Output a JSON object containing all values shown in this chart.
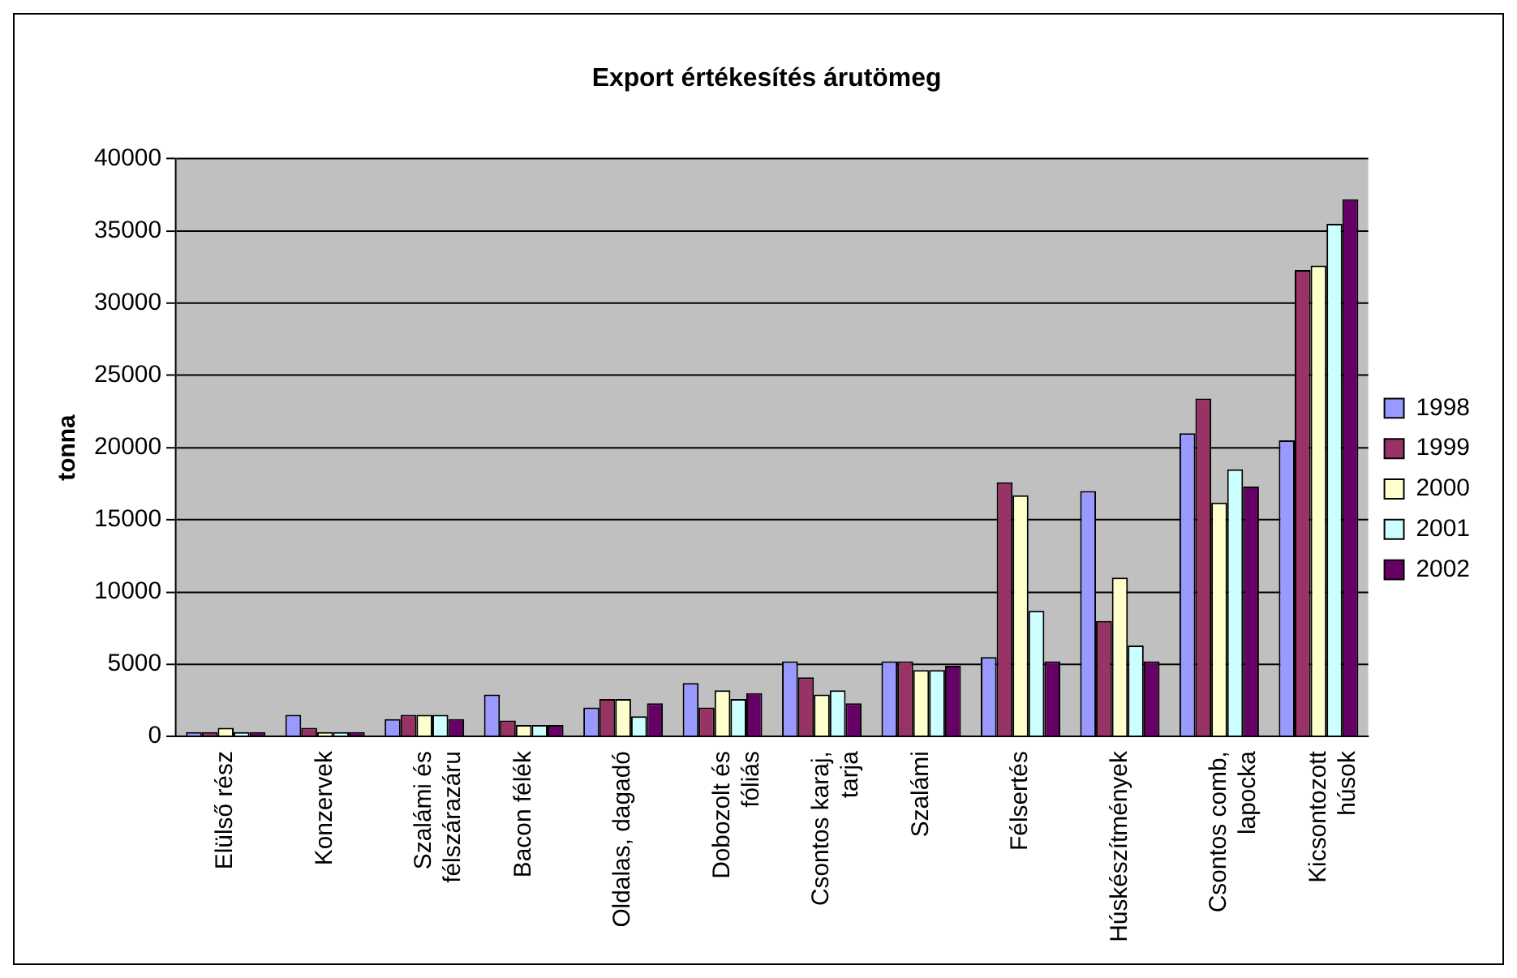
{
  "chart_data": {
    "type": "bar",
    "title": "Export értékesítés árutömeg",
    "ylabel": "tonna",
    "categories": [
      "Elülső rész",
      "Konzervek",
      "Szalámi és félszárazáru",
      "Bacon félék",
      "Oldalas, dagadó",
      "Dobozolt és fóliás",
      "Csontos karaj, tarja",
      "Szalámi",
      "Félsertés",
      "Húskészítmények",
      "Csontos comb, lapocka",
      "Kicsontozott húsok"
    ],
    "series": [
      {
        "name": "1998",
        "color": "#9999ff",
        "values": [
          300,
          1500,
          1200,
          2900,
          2000,
          3700,
          5200,
          5200,
          5500,
          17000,
          21000,
          20500
        ]
      },
      {
        "name": "1999",
        "color": "#993366",
        "values": [
          300,
          600,
          1500,
          1100,
          2600,
          2000,
          4100,
          5200,
          17600,
          8000,
          23400,
          32300
        ]
      },
      {
        "name": "2000",
        "color": "#ffffcc",
        "values": [
          600,
          300,
          1500,
          800,
          2600,
          3200,
          2900,
          4600,
          16700,
          11000,
          16200,
          32600
        ]
      },
      {
        "name": "2001",
        "color": "#ccffff",
        "values": [
          300,
          300,
          1500,
          800,
          1400,
          2600,
          3200,
          4600,
          8700,
          6300,
          18500,
          35500
        ]
      },
      {
        "name": "2002",
        "color": "#660066",
        "values": [
          300,
          300,
          1200,
          800,
          2300,
          3000,
          2300,
          4900,
          5200,
          5200,
          17300,
          37200
        ]
      }
    ],
    "ylim": [
      0,
      40000
    ],
    "yticks": [
      0,
      5000,
      10000,
      15000,
      20000,
      25000,
      30000,
      35000,
      40000
    ],
    "grid": "y",
    "legend": "right"
  }
}
